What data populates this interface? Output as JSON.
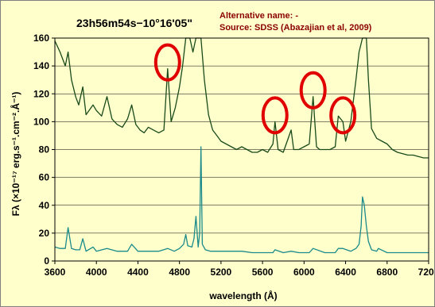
{
  "chart_data": {
    "type": "line",
    "title": "23h56m54s−10°16'05\"",
    "annotation_lines": [
      "Alternative name: -",
      "Source: SDSS (Abazajian et al, 2009)"
    ],
    "xlabel": "wavelength (Å)",
    "ylabel": "Fλ (×10⁻¹⁷ erg.s⁻¹.cm⁻².Å⁻¹)",
    "xlim": [
      3600,
      7200
    ],
    "ylim": [
      0,
      160
    ],
    "x_ticks": [
      "3600",
      "4000",
      "4400",
      "4800",
      "5200",
      "5600",
      "6000",
      "6400",
      "6800",
      "7200"
    ],
    "y_ticks": [
      "0",
      "20",
      "40",
      "60",
      "80",
      "100",
      "120",
      "140",
      "160"
    ],
    "grid": "horizontal",
    "series": [
      {
        "color": "#1a4a1a",
        "x": [
          3600,
          3650,
          3700,
          3727,
          3760,
          3800,
          3830,
          3869,
          3900,
          3968,
          4000,
          4050,
          4102,
          4150,
          4200,
          4250,
          4300,
          4340,
          4380,
          4420,
          4460,
          4500,
          4550,
          4600,
          4650,
          4686,
          4720,
          4760,
          4800,
          4830,
          4861,
          4880,
          4900,
          4930,
          4959,
          4980,
          5007,
          5040,
          5080,
          5120,
          5160,
          5200,
          5250,
          5300,
          5350,
          5400,
          5450,
          5500,
          5550,
          5600,
          5650,
          5700,
          5720,
          5750,
          5800,
          5876,
          5900,
          5950,
          6000,
          6050,
          6087,
          6120,
          6150,
          6200,
          6250,
          6300,
          6330,
          6374,
          6400,
          6450,
          6500,
          6530,
          6563,
          6600,
          6620,
          6650,
          6700,
          6750,
          6800,
          6850,
          6900,
          6950,
          7000,
          7050,
          7100,
          7150,
          7200
        ],
        "y": [
          158,
          150,
          140,
          150,
          130,
          118,
          112,
          125,
          105,
          112,
          108,
          104,
          118,
          102,
          98,
          96,
          102,
          112,
          98,
          94,
          92,
          96,
          94,
          92,
          94,
          138,
          100,
          110,
          125,
          140,
          160,
          160,
          160,
          150,
          160,
          160,
          160,
          130,
          105,
          94,
          90,
          86,
          84,
          82,
          80,
          82,
          80,
          78,
          78,
          80,
          78,
          84,
          100,
          80,
          78,
          94,
          80,
          80,
          82,
          84,
          118,
          82,
          80,
          80,
          80,
          82,
          104,
          100,
          86,
          100,
          130,
          150,
          160,
          160,
          130,
          95,
          88,
          86,
          84,
          80,
          78,
          77,
          76,
          76,
          75,
          74,
          74
        ]
      },
      {
        "color": "#1a8a8a",
        "x": [
          3600,
          3650,
          3700,
          3727,
          3760,
          3800,
          3840,
          3869,
          3900,
          3968,
          4000,
          4102,
          4200,
          4300,
          4340,
          4400,
          4500,
          4600,
          4686,
          4750,
          4800,
          4840,
          4861,
          4880,
          4920,
          4940,
          4959,
          4980,
          4995,
          5007,
          5020,
          5050,
          5100,
          5200,
          5300,
          5400,
          5500,
          5600,
          5700,
          5720,
          5800,
          5876,
          5950,
          6050,
          6087,
          6200,
          6300,
          6330,
          6374,
          6450,
          6500,
          6530,
          6550,
          6563,
          6580,
          6600,
          6620,
          6650,
          6700,
          6716,
          6800,
          6900,
          7000,
          7100,
          7150,
          7200
        ],
        "y": [
          10,
          9,
          9,
          24,
          9,
          8,
          8,
          16,
          7,
          10,
          7,
          9,
          7,
          7,
          12,
          7,
          7,
          7,
          9,
          7,
          9,
          12,
          19,
          11,
          10,
          16,
          32,
          10,
          20,
          82,
          12,
          8,
          7,
          7,
          7,
          7,
          6,
          6,
          6,
          8,
          6,
          7,
          6,
          6,
          9,
          6,
          6,
          9,
          9,
          7,
          9,
          12,
          25,
          46,
          40,
          25,
          14,
          8,
          7,
          9,
          6,
          6,
          6,
          6,
          6,
          6
        ]
      }
    ],
    "marked_lines_x": [
      4686,
      5720,
      6087,
      6374
    ]
  }
}
